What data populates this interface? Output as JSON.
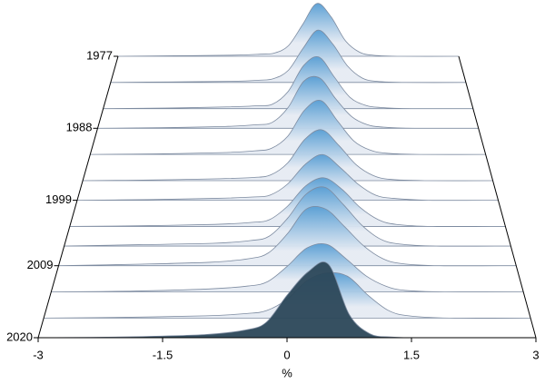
{
  "chart_data": {
    "type": "ridgeline",
    "x_label": "%",
    "x": [
      -3,
      -2,
      -1,
      -0.5,
      -0.25,
      0,
      0.25,
      0.5,
      0.75,
      1,
      1.25,
      1.5,
      2,
      3
    ],
    "xlim": [
      -3,
      3
    ],
    "xticks": [
      -3,
      -1.5,
      0,
      1.5,
      3
    ],
    "ylim": [
      1977,
      2020
    ],
    "yticks": [
      1977,
      1988,
      1999,
      2009,
      2020
    ],
    "peak_color": "#5a9fd4",
    "base_color": "#e6ebf3",
    "front_color": "#2b4759",
    "line_color": "#7d8ba0",
    "series": [
      {
        "z": 1977,
        "values": [
          0,
          0.01,
          0.02,
          0.04,
          0.06,
          0.2,
          0.6,
          1.0,
          0.75,
          0.3,
          0.08,
          0.02,
          0,
          0
        ]
      },
      {
        "z": 1981,
        "values": [
          0,
          0.01,
          0.02,
          0.04,
          0.07,
          0.22,
          0.62,
          0.95,
          0.7,
          0.3,
          0.08,
          0.02,
          0,
          0
        ]
      },
      {
        "z": 1985,
        "values": [
          0,
          0.01,
          0.03,
          0.05,
          0.08,
          0.3,
          0.75,
          0.9,
          0.55,
          0.2,
          0.06,
          0.02,
          0,
          0
        ]
      },
      {
        "z": 1988,
        "values": [
          0,
          0.01,
          0.03,
          0.06,
          0.1,
          0.35,
          0.8,
          0.85,
          0.5,
          0.2,
          0.06,
          0.02,
          0,
          0
        ]
      },
      {
        "z": 1992,
        "values": [
          0,
          0.01,
          0.03,
          0.06,
          0.1,
          0.3,
          0.72,
          0.88,
          0.55,
          0.22,
          0.07,
          0.02,
          0,
          0
        ]
      },
      {
        "z": 1996,
        "values": [
          0,
          0.01,
          0.03,
          0.05,
          0.09,
          0.28,
          0.65,
          0.8,
          0.55,
          0.25,
          0.08,
          0.02,
          0,
          0
        ]
      },
      {
        "z": 1999,
        "values": [
          0,
          0.01,
          0.03,
          0.05,
          0.08,
          0.25,
          0.55,
          0.7,
          0.5,
          0.25,
          0.08,
          0.03,
          0,
          0
        ]
      },
      {
        "z": 2003,
        "values": [
          0,
          0.01,
          0.03,
          0.06,
          0.1,
          0.3,
          0.6,
          0.72,
          0.55,
          0.28,
          0.1,
          0.03,
          0,
          0
        ]
      },
      {
        "z": 2006,
        "values": [
          0,
          0.02,
          0.04,
          0.08,
          0.14,
          0.4,
          0.75,
          0.85,
          0.6,
          0.3,
          0.1,
          0.03,
          0,
          0
        ]
      },
      {
        "z": 2009,
        "values": [
          0,
          0.02,
          0.05,
          0.1,
          0.18,
          0.45,
          0.8,
          0.8,
          0.55,
          0.28,
          0.1,
          0.03,
          0,
          0
        ]
      },
      {
        "z": 2013,
        "values": [
          0,
          0.01,
          0.04,
          0.08,
          0.14,
          0.35,
          0.6,
          0.65,
          0.45,
          0.22,
          0.08,
          0.02,
          0,
          0
        ]
      },
      {
        "z": 2017,
        "values": [
          0,
          0.01,
          0.03,
          0.06,
          0.1,
          0.25,
          0.5,
          0.6,
          0.55,
          0.3,
          0.1,
          0.03,
          0,
          0
        ]
      },
      {
        "z": 2020,
        "values": [
          0,
          0.01,
          0.04,
          0.1,
          0.2,
          0.55,
          0.85,
          0.95,
          0.3,
          0.05,
          0.01,
          0,
          0,
          0
        ]
      }
    ]
  }
}
